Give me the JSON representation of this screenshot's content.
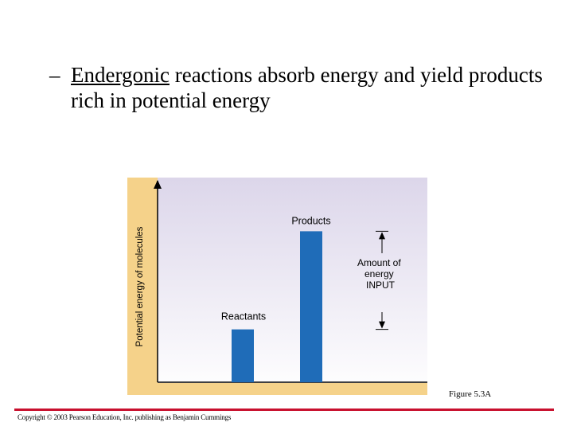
{
  "slide": {
    "bullet_dash": "–",
    "bullet_term": "Endergonic",
    "bullet_rest": " reactions absorb energy and yield products rich in potential energy",
    "figure_caption": "Figure 5.3A",
    "copyright": "Copyright © 2003 Pearson Education, Inc. publishing as Benjamin Cummings"
  },
  "diagram": {
    "y_axis_label": "Potential energy of molecules",
    "reactants_label": "Reactants",
    "products_label": "Products",
    "energy_label_lines": [
      "Amount of",
      "energy",
      "INPUT"
    ],
    "reactants_level": 0.28,
    "products_level": 0.8,
    "colors": {
      "panel_left": "#f5d28a",
      "panel_top": "#dcd6ea",
      "panel_bottom": "#ffffff",
      "bar": "#1f6cb8",
      "axis": "#000000"
    }
  }
}
